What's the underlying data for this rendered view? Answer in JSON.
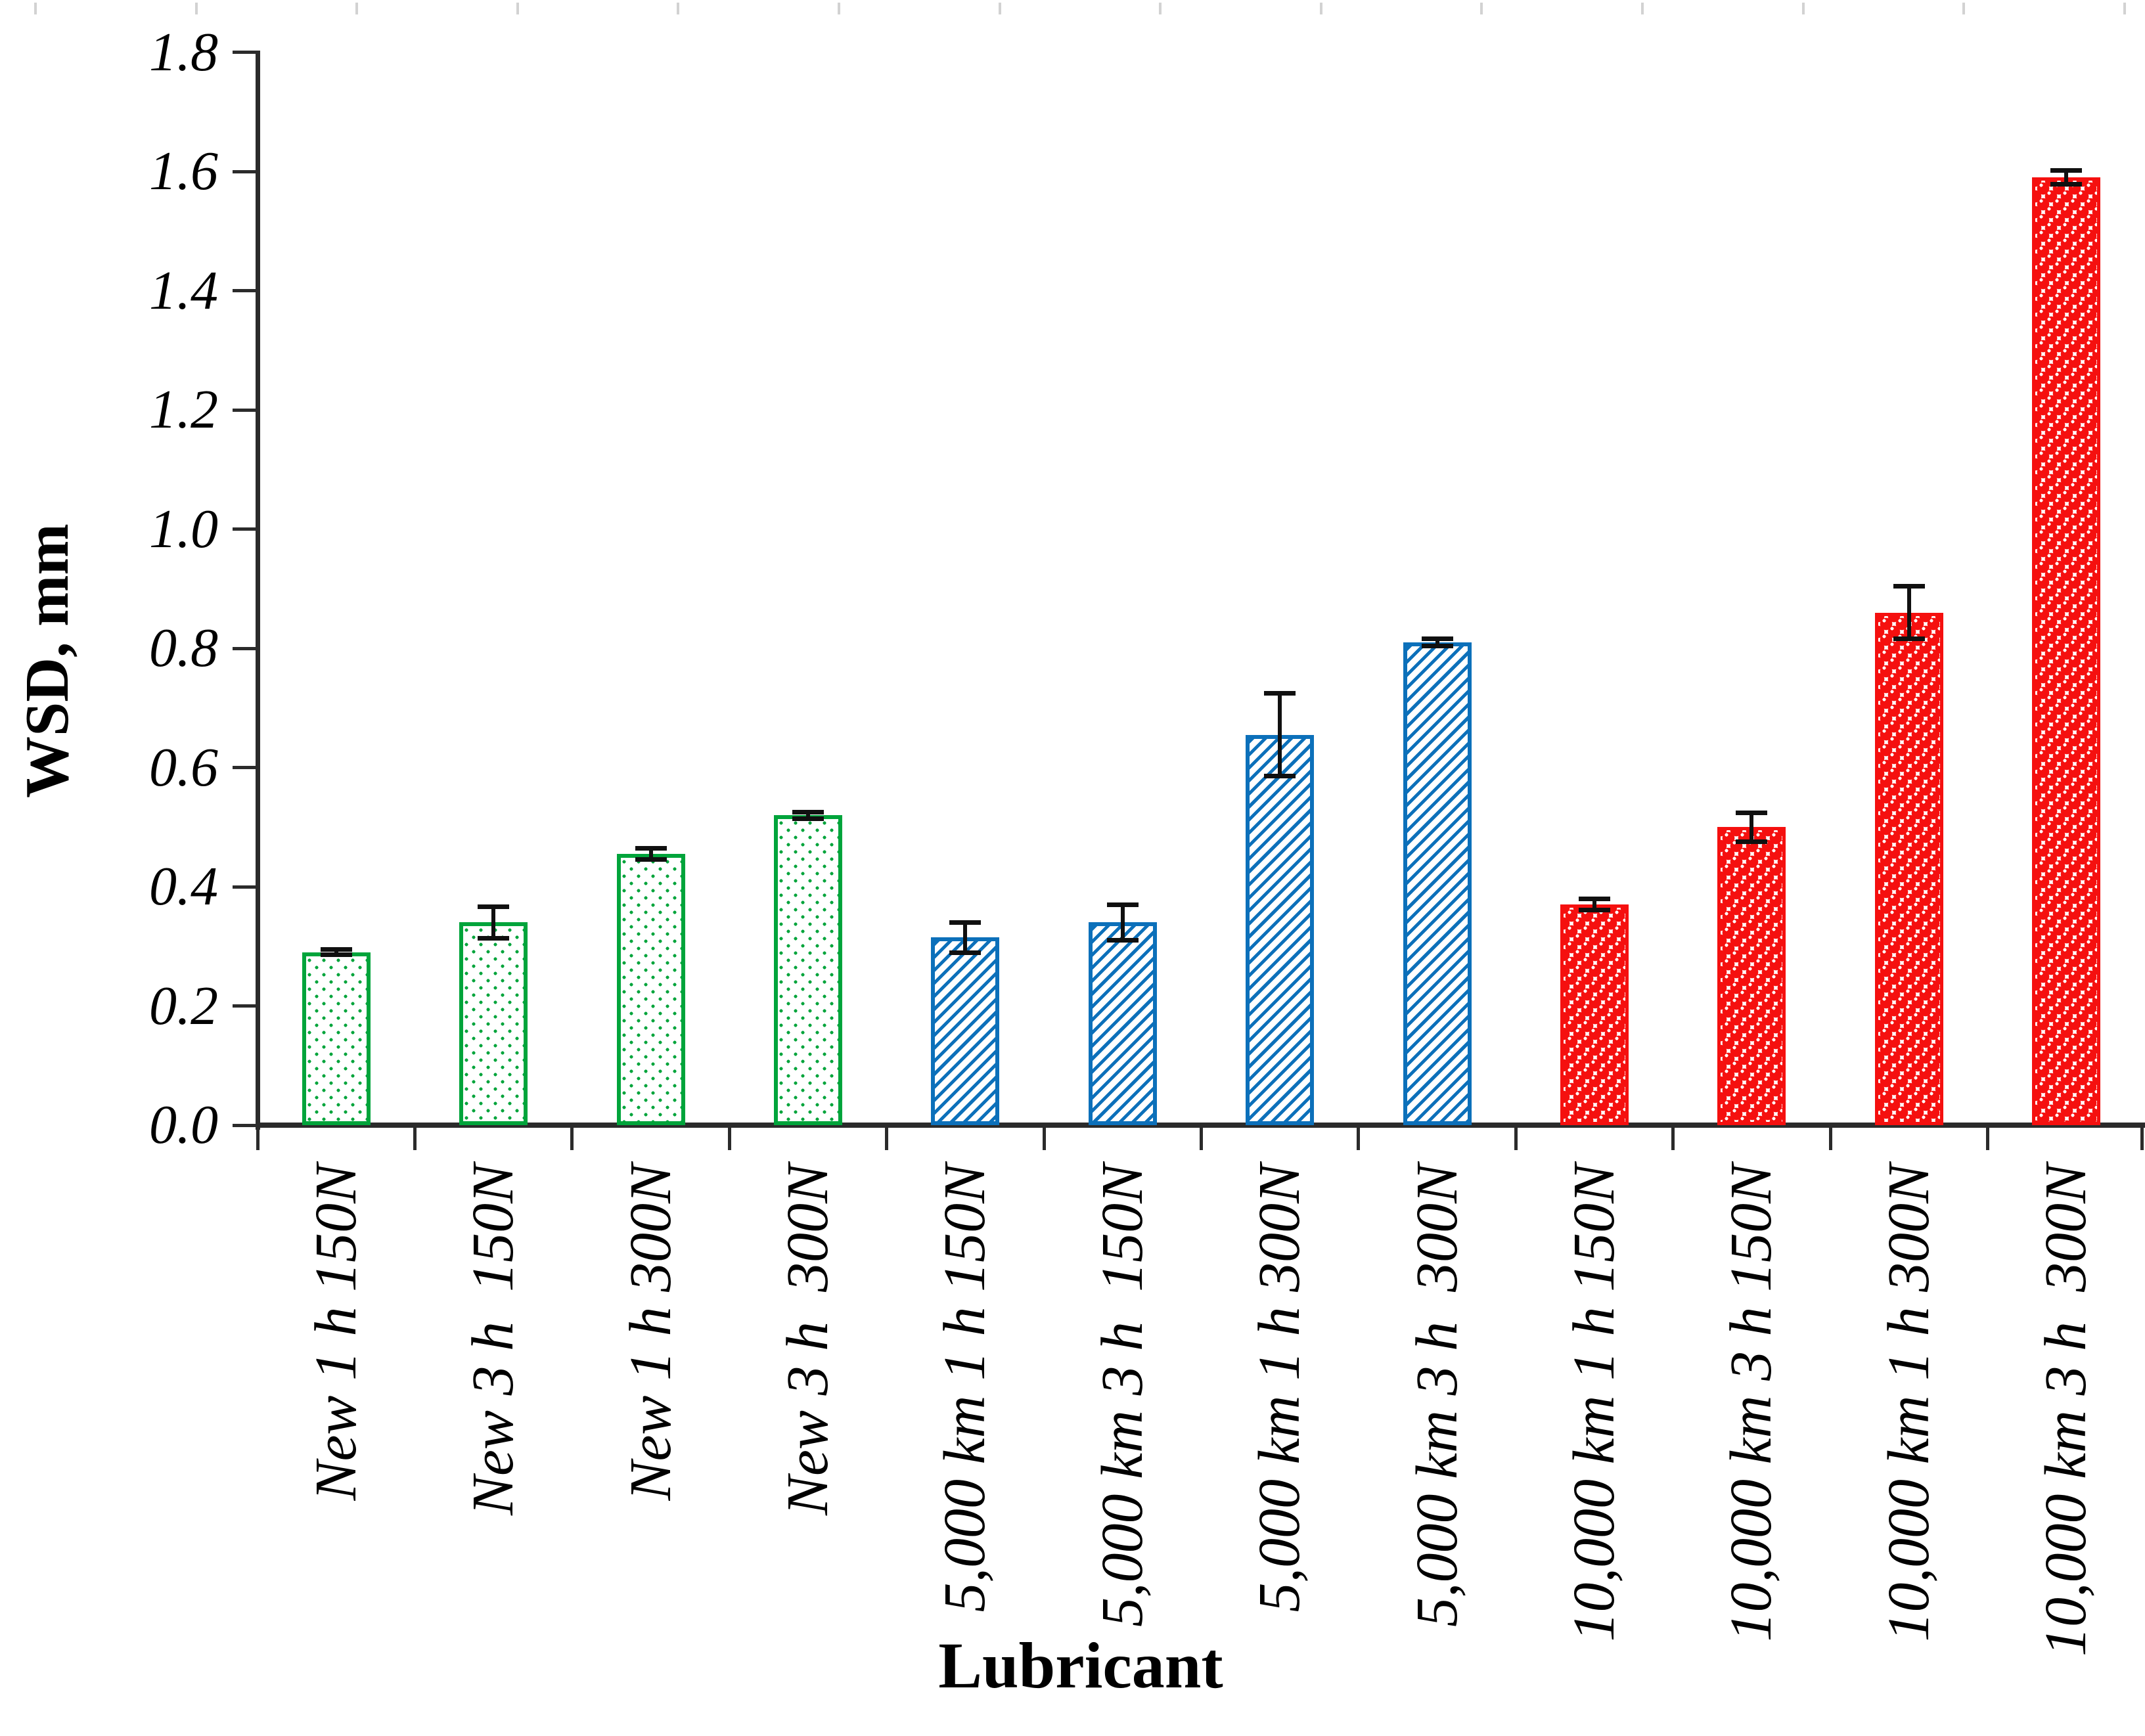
{
  "chart_data": {
    "type": "bar",
    "title": "",
    "ylabel": "WSD, mm",
    "xlabel": "Lubricant",
    "ylim": [
      0.0,
      1.8
    ],
    "ytick_labels": [
      "0.0",
      "0.2",
      "0.4",
      "0.6",
      "0.8",
      "1.0",
      "1.2",
      "1.4",
      "1.6",
      "1.8"
    ],
    "grid": "off",
    "legend": "none",
    "axis_color": "#2b2b2b",
    "error_bar_color": "#101010",
    "categories": [
      "New 1 h 150N",
      "New 3 h  150N",
      "New 1 h 300N",
      "New 3 h  300N",
      "5,000 km 1 h 150N",
      "5,000 km 3 h  150N",
      "5,000 km 1 h 300N",
      "5,000 km 3 h  300N",
      "10,000 km 1 h 150N",
      "10,000 km 3 h 150N",
      "10,000 km 1 h 300N",
      "10,000 km 3 h  300N"
    ],
    "values": [
      0.29,
      0.34,
      0.455,
      0.52,
      0.315,
      0.34,
      0.655,
      0.81,
      0.37,
      0.5,
      0.86,
      1.59
    ],
    "errors": [
      0.005,
      0.027,
      0.01,
      0.006,
      0.026,
      0.03,
      0.07,
      0.007,
      0.01,
      0.025,
      0.045,
      0.012
    ],
    "series_groups": [
      {
        "name": "New",
        "pattern": "dots",
        "color": "#00A43B",
        "bar_indexes": [
          0,
          1,
          2,
          3
        ]
      },
      {
        "name": "5,000 km",
        "pattern": "stripes",
        "color": "#0C70BA",
        "bar_indexes": [
          4,
          5,
          6,
          7
        ]
      },
      {
        "name": "10,000 km",
        "pattern": "circles",
        "color": "#F5100F",
        "bar_indexes": [
          8,
          9,
          10,
          11
        ]
      }
    ]
  }
}
